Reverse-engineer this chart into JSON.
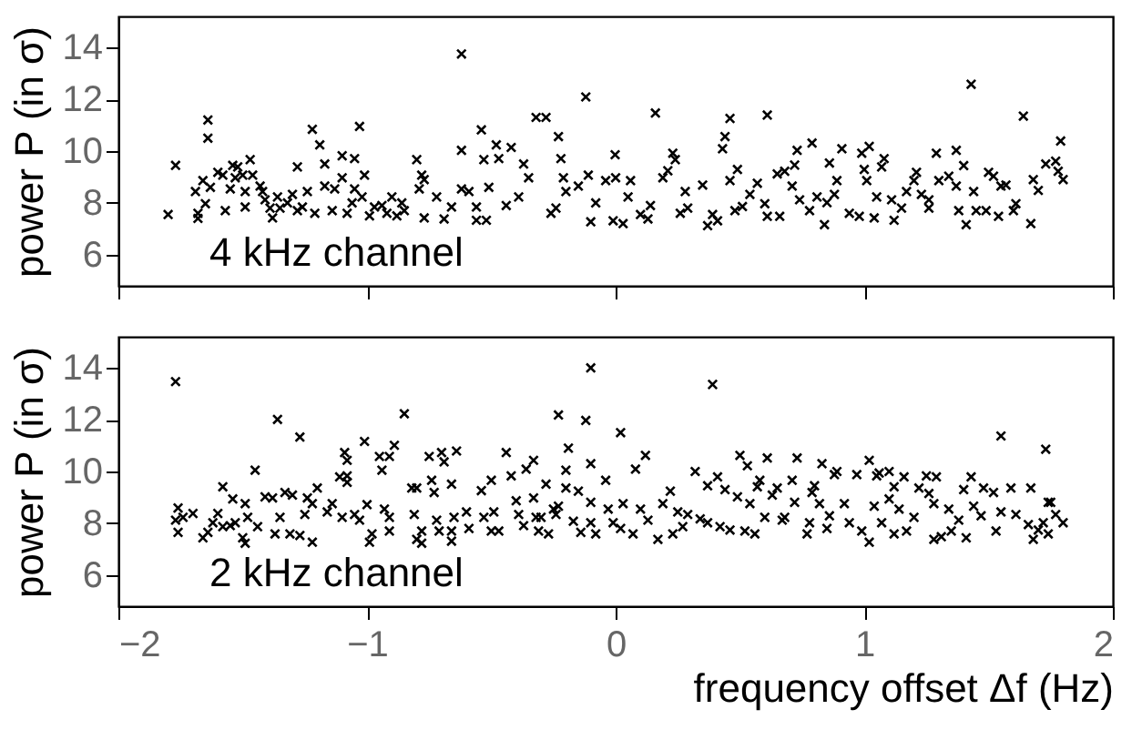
{
  "chart_data": [
    {
      "type": "scatter",
      "ylabel": "power P  (in σ)",
      "xlim": [
        -2,
        2
      ],
      "xticks": [
        -2,
        -1,
        0,
        1,
        2
      ],
      "ylim": [
        4.8,
        15.2
      ],
      "yticks": [
        6,
        8,
        10,
        12,
        14
      ],
      "tick_labels": "y",
      "marker": "cross",
      "color": "#000000",
      "annotations": [
        "4 kHz channel"
      ],
      "x": [
        -1.8,
        -1.77,
        -1.69,
        -1.68,
        -1.68,
        -1.66,
        -1.65,
        -1.64,
        -1.64,
        -1.63,
        -1.6,
        -1.58,
        -1.57,
        -1.55,
        -1.54,
        -1.52,
        -1.53,
        -1.5,
        -1.49,
        -1.47,
        -1.49,
        -1.46,
        -1.43,
        -1.42,
        -1.41,
        -1.39,
        -1.38,
        -1.36,
        -1.35,
        -1.32,
        -1.3,
        -1.28,
        -1.28,
        -1.26,
        -1.24,
        -1.22,
        -1.21,
        -1.19,
        -1.17,
        -1.17,
        -1.14,
        -1.13,
        -1.1,
        -1.1,
        -1.08,
        -1.06,
        -1.05,
        -1.05,
        -1.03,
        -1.02,
        -1.01,
        -0.99,
        -0.97,
        -0.94,
        -0.92,
        -0.9,
        -0.88,
        -0.86,
        -0.85,
        -0.8,
        -0.79,
        -0.78,
        -0.77,
        -0.77,
        -0.72,
        -0.69,
        -0.66,
        -0.62,
        -0.62,
        -0.62,
        -0.59,
        -0.56,
        -0.54,
        -0.56,
        -0.52,
        -0.53,
        -0.51,
        -0.48,
        -0.47,
        -0.44,
        -0.42,
        -0.39,
        -0.37,
        -0.35,
        -0.32,
        -0.28,
        -0.26,
        -0.23,
        -0.22,
        -0.21,
        -0.2,
        -0.24,
        -0.12,
        -0.15,
        -0.11,
        -0.1,
        -0.08,
        -0.04,
        -0.002,
        0.0,
        -0.01,
        0.03,
        0.06,
        0.05,
        0.1,
        0.13,
        0.16,
        0.14,
        0.19,
        0.21,
        0.23,
        0.24,
        0.26,
        0.28,
        0.29,
        0.35,
        0.37,
        0.39,
        0.41,
        0.43,
        0.44,
        0.46,
        0.46,
        0.49,
        0.48,
        0.51,
        0.54,
        0.57,
        0.6,
        0.61,
        0.61,
        0.65,
        0.66,
        0.68,
        0.71,
        0.72,
        0.73,
        0.74,
        0.78,
        0.79,
        0.81,
        0.84,
        0.85,
        0.86,
        0.88,
        0.89,
        0.91,
        0.94,
        0.98,
        0.99,
        1.0,
        1.01,
        1.02,
        1.04,
        1.05,
        1.07,
        1.08,
        1.11,
        1.12,
        1.15,
        1.17,
        1.2,
        1.21,
        1.23,
        1.26,
        1.26,
        1.29,
        1.3,
        1.34,
        1.37,
        1.37,
        1.38,
        1.4,
        1.41,
        1.43,
        1.44,
        1.45,
        1.49,
        1.5,
        1.52,
        1.54,
        1.55,
        1.57,
        1.6,
        1.61,
        1.64,
        1.67,
        1.68,
        1.7,
        1.73,
        1.77,
        1.79,
        1.78,
        1.8
      ],
      "values": [
        7.55,
        9.45,
        8.44,
        7.6,
        7.4,
        8.86,
        7.97,
        11.2,
        10.5,
        8.6,
        9.18,
        9.07,
        7.7,
        8.54,
        9.45,
        9.39,
        8.97,
        9.07,
        8.44,
        9.67,
        7.84,
        9.07,
        8.65,
        8.44,
        8.12,
        7.8,
        7.42,
        8.23,
        7.8,
        8.0,
        8.33,
        7.7,
        9.39,
        7.84,
        8.44,
        10.84,
        7.6,
        10.24,
        8.65,
        9.5,
        7.7,
        8.54,
        9.82,
        8.97,
        7.6,
        8.0,
        8.54,
        9.71,
        10.95,
        8.23,
        9.07,
        7.5,
        7.84,
        7.9,
        7.6,
        8.23,
        7.5,
        8.0,
        7.7,
        9.67,
        8.54,
        9.07,
        8.9,
        7.42,
        8.23,
        7.38,
        7.84,
        13.75,
        10.03,
        8.54,
        8.44,
        7.84,
        10.82,
        7.33,
        7.33,
        9.67,
        8.6,
        10.24,
        9.71,
        7.9,
        10.14,
        8.23,
        9.5,
        8.97,
        11.3,
        11.3,
        7.6,
        10.56,
        9.71,
        8.97,
        8.44,
        7.8,
        12.09,
        8.65,
        9.07,
        7.27,
        8.0,
        8.86,
        9.86,
        8.97,
        7.31,
        7.2,
        8.86,
        8.23,
        7.55,
        7.38,
        11.47,
        7.9,
        8.97,
        9.24,
        9.92,
        9.67,
        7.6,
        8.44,
        7.8,
        8.69,
        7.12,
        7.55,
        7.31,
        10.09,
        10.56,
        11.26,
        8.86,
        9.29,
        7.7,
        7.86,
        8.33,
        8.76,
        7.97,
        11.39,
        7.48,
        9.12,
        7.48,
        9.22,
        8.65,
        9.46,
        10.03,
        8.12,
        7.7,
        10.31,
        8.23,
        7.16,
        8.01,
        9.54,
        8.33,
        8.86,
        10.09,
        7.6,
        7.48,
        9.92,
        9.29,
        8.86,
        10.18,
        7.42,
        8.23,
        9.39,
        9.71,
        8.12,
        7.33,
        7.8,
        8.44,
        8.86,
        9.18,
        8.33,
        7.8,
        8.12,
        9.92,
        8.86,
        9.03,
        8.65,
        10.03,
        7.7,
        9.44,
        7.16,
        12.58,
        8.44,
        7.7,
        7.7,
        9.18,
        9.03,
        7.48,
        8.65,
        8.69,
        7.7,
        7.97,
        11.35,
        7.2,
        8.9,
        8.48,
        9.5,
        9.61,
        10.39,
        9.22,
        8.9
      ]
    },
    {
      "type": "scatter",
      "xlabel": "frequency offset Δf  (Hz)",
      "ylabel": "power P  (in σ)",
      "xlim": [
        -2,
        2
      ],
      "xticks": [
        -2,
        -1,
        0,
        1,
        2
      ],
      "ylim": [
        4.8,
        15.2
      ],
      "yticks": [
        6,
        8,
        10,
        12,
        14
      ],
      "marker": "cross",
      "color": "#000000",
      "annotations": [
        "2 kHz channel"
      ],
      "x": [
        -1.77,
        -1.77,
        -1.76,
        -1.76,
        -1.74,
        -1.7,
        -1.66,
        -1.64,
        -1.62,
        -1.6,
        -1.58,
        -1.58,
        -1.55,
        -1.54,
        -1.53,
        -1.5,
        -1.49,
        -1.49,
        -1.48,
        -1.45,
        -1.44,
        -1.41,
        -1.38,
        -1.36,
        -1.37,
        -1.35,
        -1.33,
        -1.31,
        -1.3,
        -1.27,
        -1.27,
        -1.25,
        -1.24,
        -1.22,
        -1.22,
        -1.2,
        -1.16,
        -1.14,
        -1.11,
        -1.1,
        -1.09,
        -1.08,
        -1.08,
        -1.08,
        -1.05,
        -1.03,
        -1.01,
        -1.0,
        -0.99,
        -0.98,
        -0.95,
        -0.94,
        -0.93,
        -0.91,
        -0.91,
        -0.89,
        -0.91,
        -0.85,
        -0.82,
        -0.8,
        -0.81,
        -0.8,
        -0.78,
        -0.78,
        -0.75,
        -0.74,
        -0.73,
        -0.72,
        -0.71,
        -0.7,
        -0.69,
        -0.66,
        -0.66,
        -0.66,
        -0.65,
        -0.64,
        -0.6,
        -0.59,
        -0.54,
        -0.53,
        -0.5,
        -0.5,
        -0.49,
        -0.47,
        -0.44,
        -0.42,
        -0.4,
        -0.39,
        -0.37,
        -0.36,
        -0.33,
        -0.33,
        -0.32,
        -0.31,
        -0.3,
        -0.28,
        -0.27,
        -0.23,
        -0.23,
        -0.19,
        -0.2,
        -0.2,
        -0.25,
        -0.24,
        -0.17,
        -0.15,
        -0.14,
        -0.12,
        -0.1,
        -0.1,
        -0.1,
        -0.1,
        -0.08,
        -0.04,
        -0.03,
        -0.01,
        0.02,
        0.02,
        0.03,
        0.07,
        0.08,
        0.1,
        0.12,
        0.13,
        0.17,
        0.19,
        0.22,
        0.23,
        0.25,
        0.27,
        0.29,
        0.32,
        0.34,
        0.37,
        0.37,
        0.39,
        0.41,
        0.42,
        0.44,
        0.46,
        0.49,
        0.5,
        0.52,
        0.53,
        0.54,
        0.56,
        0.57,
        0.58,
        0.6,
        0.61,
        0.63,
        0.65,
        0.67,
        0.68,
        0.71,
        0.72,
        0.73,
        0.77,
        0.78,
        0.79,
        0.8,
        0.82,
        0.83,
        0.85,
        0.86,
        0.88,
        0.89,
        0.92,
        0.94,
        0.97,
        0.99,
        1.02,
        1.02,
        1.04,
        1.05,
        1.06,
        1.07,
        1.1,
        1.1,
        1.12,
        1.12,
        1.14,
        1.16,
        1.17,
        1.2,
        1.22,
        1.25,
        1.26,
        1.28,
        1.28,
        1.29,
        1.31,
        1.34,
        1.35,
        1.38,
        1.4,
        1.41,
        1.43,
        1.44,
        1.47,
        1.48,
        1.52,
        1.53,
        1.55,
        1.55,
        1.59,
        1.61,
        1.66,
        1.67,
        1.68,
        1.7,
        1.72,
        1.73,
        1.74,
        1.74,
        1.75,
        1.77,
        1.8
      ],
      "values": [
        13.47,
        8.12,
        8.59,
        7.65,
        8.23,
        8.38,
        7.44,
        7.65,
        8.02,
        8.38,
        9.41,
        7.87,
        7.91,
        8.94,
        8.02,
        7.44,
        7.23,
        8.76,
        8.23,
        10.05,
        7.87,
        9.02,
        8.98,
        12.01,
        7.59,
        8.23,
        9.19,
        7.59,
        9.09,
        11.33,
        7.53,
        8.34,
        8.98,
        8.76,
        7.27,
        9.36,
        8.44,
        8.76,
        9.79,
        8.23,
        10.73,
        10.43,
        9.83,
        9.58,
        8.34,
        8.12,
        11.16,
        8.72,
        7.27,
        7.59,
        10.58,
        10.05,
        8.55,
        7.7,
        10.58,
        11.01,
        8.23,
        12.23,
        9.36,
        9.36,
        8.34,
        7.38,
        7.7,
        7.23,
        10.58,
        9.66,
        9.19,
        8.12,
        7.7,
        10.73,
        10.37,
        9.51,
        7.7,
        7.31,
        8.23,
        10.79,
        8.44,
        7.8,
        9.26,
        8.23,
        9.66,
        7.7,
        8.44,
        7.7,
        10.73,
        9.83,
        8.87,
        8.34,
        7.91,
        10.09,
        10.43,
        8.98,
        8.23,
        7.7,
        8.23,
        9.51,
        7.59,
        8.66,
        12.18,
        10.9,
        10.05,
        9.36,
        8.55,
        8.34,
        8.08,
        9.24,
        7.65,
        11.97,
        14.0,
        8.02,
        10.3,
        8.81,
        7.59,
        9.66,
        8.55,
        8.02,
        11.5,
        7.8,
        8.76,
        7.59,
        10.09,
        8.55,
        10.62,
        8.12,
        7.38,
        8.76,
        9.24,
        7.59,
        8.44,
        7.87,
        8.34,
        10.0,
        8.17,
        9.45,
        8.02,
        13.36,
        9.79,
        7.87,
        9.3,
        7.74,
        9.02,
        10.62,
        7.7,
        10.22,
        8.76,
        7.59,
        9.41,
        9.66,
        8.23,
        10.52,
        9.09,
        9.36,
        8.12,
        8.23,
        9.66,
        8.81,
        10.52,
        7.59,
        8.02,
        9.19,
        9.45,
        8.76,
        10.3,
        7.8,
        8.29,
        9.88,
        10.0,
        8.76,
        8.02,
        9.88,
        7.7,
        7.27,
        10.43,
        8.66,
        9.83,
        9.94,
        8.02,
        10.0,
        8.94,
        9.41,
        7.59,
        8.55,
        9.79,
        7.7,
        8.23,
        9.36,
        9.83,
        9.15,
        7.38,
        8.76,
        9.79,
        7.48,
        8.55,
        7.7,
        8.12,
        9.3,
        7.44,
        9.79,
        8.66,
        8.29,
        9.36,
        9.19,
        7.7,
        11.37,
        8.44,
        9.36,
        8.34,
        7.95,
        9.36,
        7.38,
        7.74,
        8.02,
        10.86,
        8.81,
        7.59,
        8.81,
        8.34,
        8.02
      ]
    }
  ]
}
